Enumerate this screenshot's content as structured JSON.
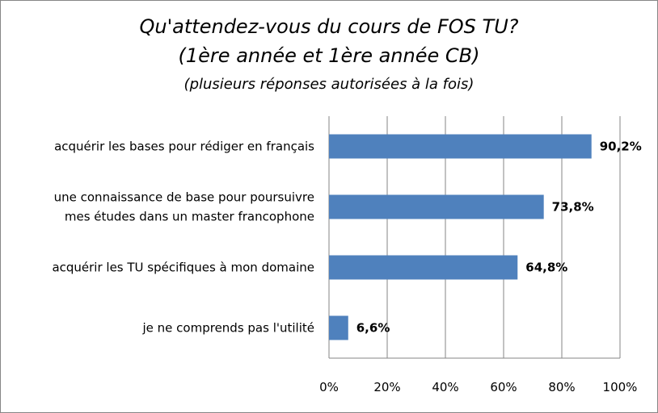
{
  "chart_data": {
    "type": "bar",
    "orientation": "horizontal",
    "title": "Qu'attendez-vous du cours de FOS  TU?",
    "subtitle": "(1ère année  et 1ère année CB)",
    "subtitle2": "(plusieurs réponses autorisées à la fois)",
    "categories": [
      [
        "acquérir les bases pour rédiger en français"
      ],
      [
        "une connaissance de base pour poursuivre",
        "mes études dans un master francophone"
      ],
      [
        "acquérir les TU spécifiques à mon domaine"
      ],
      [
        "je ne comprends pas l'utilité"
      ]
    ],
    "values": [
      90.2,
      73.8,
      64.8,
      6.6
    ],
    "data_labels": [
      "90,2%",
      "73,8%",
      "64,8%",
      "6,6%"
    ],
    "xlim": [
      0,
      100
    ],
    "xticks": [
      "0%",
      "20%",
      "40%",
      "60%",
      "80%",
      "100%"
    ],
    "grid": true,
    "legend": "none",
    "bar_color": "#4F81BD",
    "grid_color": "#868686"
  }
}
